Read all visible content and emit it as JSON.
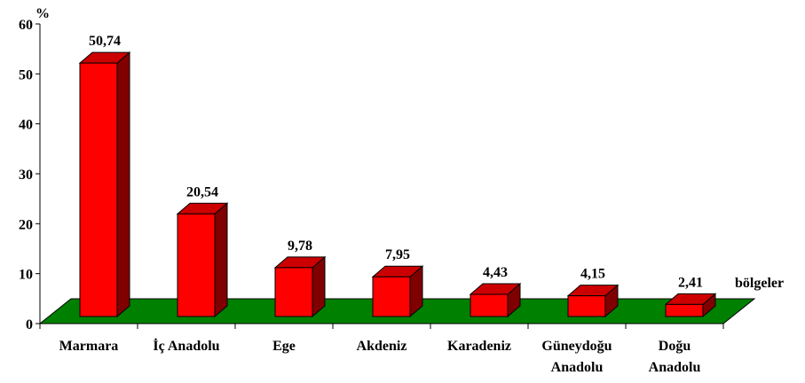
{
  "chart_data": {
    "type": "bar3d",
    "y_label": "%",
    "x_label": "bölgeler",
    "categories": [
      "Marmara",
      "İç Anadolu",
      "Ege",
      "Akdeniz",
      "Karadeniz",
      "Güneydoğu\nAnadolu",
      "Doğu\nAnadolu"
    ],
    "values": [
      50.74,
      20.54,
      9.78,
      7.95,
      4.43,
      4.15,
      2.41
    ],
    "value_labels": [
      "50,74",
      "20,54",
      "9,78",
      "7,95",
      "4,43",
      "4,15",
      "2,41"
    ],
    "color": "#ff0000",
    "floor_color": "#008000",
    "ylim": [
      0,
      60
    ],
    "yticks": [
      0,
      10,
      20,
      30,
      40,
      50,
      60
    ]
  }
}
